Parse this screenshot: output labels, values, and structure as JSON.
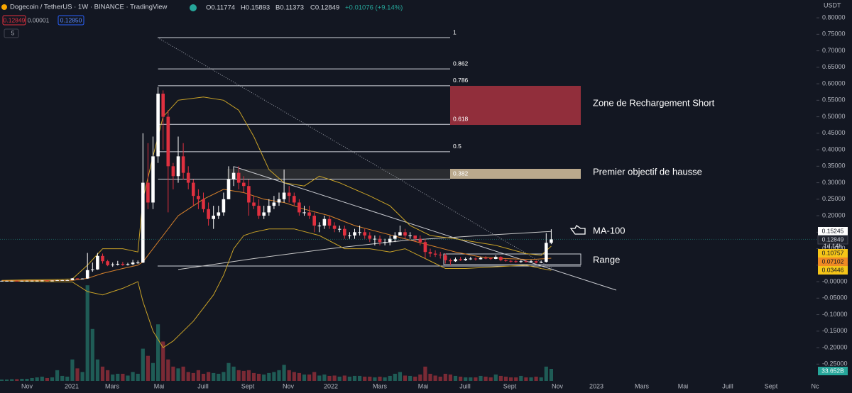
{
  "header": {
    "symbol": "Dogecoin / TetherUS · 1W · BINANCE · TradingView",
    "ohlc": [
      "O0.11774",
      "H0.15893",
      "B0.11373",
      "C0.12849"
    ],
    "change": "+0.01076 (+9.14%)",
    "bid": "0.12849",
    "spread": "0.00001",
    "ask": "0.12850",
    "indicator_count": "5"
  },
  "chart_data": {
    "type": "candlestick",
    "up_color": "#ffffff",
    "down_color": "#e0303f",
    "open": [
      0.0025,
      0.0026,
      0.0026,
      0.0027,
      0.0026,
      0.0027,
      0.0028,
      0.003,
      0.0031,
      0.0035,
      0.0032,
      0.0034,
      0.0045,
      0.0046,
      0.0047,
      0.01,
      0.0086,
      0.0095,
      0.035,
      0.037,
      0.078,
      0.062,
      0.05,
      0.052,
      0.054,
      0.051,
      0.053,
      0.058,
      0.058,
      0.3,
      0.24,
      0.38,
      0.57,
      0.5,
      0.35,
      0.32,
      0.38,
      0.33,
      0.3,
      0.26,
      0.25,
      0.22,
      0.19,
      0.2,
      0.21,
      0.25,
      0.31,
      0.33,
      0.3,
      0.29,
      0.24,
      0.23,
      0.2,
      0.21,
      0.23,
      0.24,
      0.25,
      0.27,
      0.26,
      0.24,
      0.21,
      0.21,
      0.2,
      0.17,
      0.17,
      0.19,
      0.17,
      0.16,
      0.16,
      0.14,
      0.14,
      0.15,
      0.15,
      0.14,
      0.13,
      0.13,
      0.12,
      0.12,
      0.13,
      0.14,
      0.15,
      0.14,
      0.14,
      0.13,
      0.12,
      0.09,
      0.085,
      0.082,
      0.08,
      0.065,
      0.062,
      0.068,
      0.065,
      0.069,
      0.07,
      0.068,
      0.072,
      0.071,
      0.069,
      0.075,
      0.065,
      0.063,
      0.062,
      0.06,
      0.062,
      0.061,
      0.062,
      0.058,
      0.06,
      0.11774
    ],
    "high": [
      0.0028,
      0.0028,
      0.0029,
      0.0028,
      0.0029,
      0.003,
      0.0032,
      0.0034,
      0.0038,
      0.0037,
      0.0036,
      0.0048,
      0.0049,
      0.0058,
      0.011,
      0.0103,
      0.01,
      0.087,
      0.058,
      0.087,
      0.085,
      0.066,
      0.058,
      0.063,
      0.06,
      0.057,
      0.066,
      0.064,
      0.45,
      0.42,
      0.44,
      0.59,
      0.58,
      0.52,
      0.36,
      0.44,
      0.42,
      0.35,
      0.31,
      0.28,
      0.27,
      0.24,
      0.23,
      0.23,
      0.27,
      0.35,
      0.35,
      0.35,
      0.32,
      0.31,
      0.26,
      0.25,
      0.23,
      0.25,
      0.26,
      0.27,
      0.34,
      0.29,
      0.27,
      0.25,
      0.23,
      0.23,
      0.21,
      0.18,
      0.2,
      0.2,
      0.18,
      0.17,
      0.17,
      0.15,
      0.16,
      0.17,
      0.16,
      0.15,
      0.14,
      0.14,
      0.13,
      0.14,
      0.15,
      0.17,
      0.16,
      0.15,
      0.14,
      0.14,
      0.13,
      0.1,
      0.095,
      0.09,
      0.085,
      0.07,
      0.073,
      0.075,
      0.073,
      0.075,
      0.073,
      0.076,
      0.077,
      0.074,
      0.08,
      0.077,
      0.068,
      0.066,
      0.065,
      0.066,
      0.065,
      0.066,
      0.064,
      0.064,
      0.147,
      0.15893
    ],
    "low": [
      0.0024,
      0.0025,
      0.0025,
      0.0025,
      0.0025,
      0.0026,
      0.0027,
      0.0029,
      0.003,
      0.003,
      0.0031,
      0.0033,
      0.0042,
      0.0044,
      0.0045,
      0.0075,
      0.008,
      0.0088,
      0.03,
      0.036,
      0.055,
      0.047,
      0.045,
      0.049,
      0.048,
      0.049,
      0.05,
      0.054,
      0.056,
      0.22,
      0.22,
      0.36,
      0.4,
      0.21,
      0.28,
      0.3,
      0.31,
      0.28,
      0.23,
      0.22,
      0.21,
      0.17,
      0.16,
      0.19,
      0.2,
      0.25,
      0.29,
      0.28,
      0.27,
      0.2,
      0.22,
      0.19,
      0.19,
      0.2,
      0.22,
      0.23,
      0.24,
      0.24,
      0.23,
      0.2,
      0.2,
      0.19,
      0.15,
      0.15,
      0.16,
      0.16,
      0.15,
      0.15,
      0.13,
      0.13,
      0.13,
      0.14,
      0.13,
      0.12,
      0.11,
      0.11,
      0.11,
      0.11,
      0.12,
      0.14,
      0.13,
      0.13,
      0.12,
      0.11,
      0.07,
      0.075,
      0.075,
      0.07,
      0.055,
      0.05,
      0.06,
      0.063,
      0.063,
      0.066,
      0.064,
      0.067,
      0.068,
      0.066,
      0.068,
      0.062,
      0.06,
      0.058,
      0.057,
      0.057,
      0.058,
      0.058,
      0.055,
      0.056,
      0.058,
      0.11373
    ],
    "close": [
      0.0026,
      0.0026,
      0.0027,
      0.0026,
      0.0027,
      0.0028,
      0.003,
      0.0031,
      0.0035,
      0.0032,
      0.0034,
      0.0045,
      0.0046,
      0.0047,
      0.01,
      0.0086,
      0.0095,
      0.035,
      0.037,
      0.078,
      0.062,
      0.05,
      0.052,
      0.054,
      0.051,
      0.053,
      0.058,
      0.058,
      0.3,
      0.24,
      0.38,
      0.57,
      0.5,
      0.35,
      0.32,
      0.38,
      0.33,
      0.3,
      0.26,
      0.25,
      0.22,
      0.19,
      0.2,
      0.21,
      0.25,
      0.31,
      0.33,
      0.3,
      0.29,
      0.24,
      0.23,
      0.2,
      0.21,
      0.23,
      0.24,
      0.25,
      0.27,
      0.26,
      0.24,
      0.21,
      0.21,
      0.2,
      0.17,
      0.17,
      0.19,
      0.17,
      0.16,
      0.16,
      0.14,
      0.14,
      0.15,
      0.15,
      0.14,
      0.13,
      0.13,
      0.12,
      0.12,
      0.13,
      0.14,
      0.15,
      0.14,
      0.14,
      0.13,
      0.12,
      0.09,
      0.085,
      0.082,
      0.08,
      0.065,
      0.062,
      0.068,
      0.065,
      0.069,
      0.07,
      0.068,
      0.072,
      0.071,
      0.069,
      0.075,
      0.065,
      0.063,
      0.062,
      0.06,
      0.062,
      0.061,
      0.062,
      0.058,
      0.06,
      0.11774,
      0.12849
    ],
    "volume": {
      "up_color": "#1f5c56",
      "down_color": "#7a2a35",
      "tag_color": "#26a69a",
      "last_label": "33.652B",
      "values": [
        4,
        4,
        5,
        5,
        6,
        6,
        8,
        10,
        12,
        8,
        10,
        30,
        14,
        12,
        60,
        35,
        25,
        267,
        145,
        60,
        40,
        30,
        18,
        20,
        20,
        15,
        25,
        20,
        90,
        70,
        50,
        158,
        110,
        60,
        40,
        35,
        40,
        25,
        22,
        30,
        20,
        25,
        22,
        20,
        25,
        50,
        40,
        30,
        28,
        30,
        22,
        20,
        18,
        22,
        25,
        30,
        45,
        30,
        25,
        22,
        18,
        18,
        25,
        15,
        18,
        14,
        15,
        12,
        15,
        12,
        14,
        14,
        12,
        12,
        10,
        12,
        10,
        14,
        20,
        25,
        15,
        14,
        12,
        18,
        40,
        20,
        15,
        12,
        20,
        18,
        14,
        12,
        10,
        10,
        10,
        14,
        12,
        10,
        18,
        14,
        12,
        10,
        10,
        14,
        10,
        10,
        12,
        10,
        40,
        33.652
      ]
    },
    "indicators": [
      {
        "color": "#c9c9c9",
        "x": [
          35,
          50,
          65,
          80,
          95,
          109
        ],
        "values": [
          0.037,
          0.07,
          0.1,
          0.125,
          0.14,
          0.15245
        ]
      },
      {
        "color": "#c9a227",
        "x": [
          0,
          14,
          17,
          20,
          24,
          27,
          28,
          30,
          32,
          35,
          40,
          44,
          47,
          50,
          53,
          56,
          60,
          63,
          67,
          73,
          77,
          81,
          85,
          90,
          98,
          104,
          107,
          109
        ],
        "values": [
          0.004,
          0.008,
          0.05,
          0.1,
          0.1,
          0.09,
          0.25,
          0.38,
          0.5,
          0.55,
          0.56,
          0.55,
          0.52,
          0.44,
          0.34,
          0.3,
          0.29,
          0.32,
          0.3,
          0.26,
          0.23,
          0.17,
          0.14,
          0.13,
          0.11,
          0.085,
          0.08,
          0.10757
        ]
      },
      {
        "color": "#c9a227",
        "x": [
          0,
          14,
          17,
          20,
          24,
          27,
          28,
          30,
          32,
          34,
          38,
          42,
          44,
          46,
          48,
          50,
          53,
          58,
          63,
          68,
          73,
          77,
          80,
          84,
          88,
          92,
          98,
          104,
          107,
          109
        ],
        "values": [
          0.002,
          -0.001,
          -0.03,
          -0.04,
          -0.02,
          0,
          -0.06,
          -0.15,
          -0.2,
          -0.18,
          -0.12,
          -0.04,
          0.02,
          0.1,
          0.14,
          0.15,
          0.16,
          0.16,
          0.14,
          0.1,
          0.1,
          0.09,
          0.1,
          0.07,
          0.04,
          0.04,
          0.045,
          0.05,
          0.04,
          0.03446
        ]
      },
      {
        "color": "#d9822b",
        "x": [
          0,
          14,
          17,
          20,
          24,
          27,
          28,
          30,
          32,
          35,
          40,
          44,
          48,
          52,
          56,
          60,
          65,
          70,
          75,
          80,
          85,
          90,
          95,
          100,
          105,
          109
        ],
        "values": [
          0.003,
          0.004,
          0.01,
          0.025,
          0.04,
          0.05,
          0.06,
          0.1,
          0.14,
          0.2,
          0.25,
          0.28,
          0.27,
          0.25,
          0.24,
          0.22,
          0.2,
          0.17,
          0.15,
          0.13,
          0.11,
          0.09,
          0.075,
          0.07,
          0.067,
          0.07102
        ]
      }
    ],
    "ylim": [
      -0.301,
      0.854
    ],
    "yticks": [
      {
        "value": 0.8,
        "label": "0.80000"
      },
      {
        "value": 0.75,
        "label": "0.75000"
      },
      {
        "value": 0.7,
        "label": "0.70000"
      },
      {
        "value": 0.65,
        "label": "0.65000"
      },
      {
        "value": 0.6,
        "label": "0.60000"
      },
      {
        "value": 0.55,
        "label": "0.55000"
      },
      {
        "value": 0.5,
        "label": "0.50000"
      },
      {
        "value": 0.45,
        "label": "0.45000"
      },
      {
        "value": 0.4,
        "label": "0.40000"
      },
      {
        "value": 0.35,
        "label": "0.35000"
      },
      {
        "value": 0.3,
        "label": "0.30000"
      },
      {
        "value": 0.25,
        "label": "0.25000"
      },
      {
        "value": 0.2,
        "label": "0.20000"
      },
      {
        "value": 0.15,
        "label": "0.15000"
      },
      {
        "value": 0.1,
        "label": "0.10000"
      },
      {
        "value": 0.05,
        "label": "0.05000"
      },
      {
        "value": 0,
        "label": "-0.00000"
      },
      {
        "value": -0.05,
        "label": "-0.05000"
      },
      {
        "value": -0.1,
        "label": "-0.10000"
      },
      {
        "value": -0.15,
        "label": "-0.15000"
      },
      {
        "value": -0.2,
        "label": "-0.20000"
      },
      {
        "value": -0.25,
        "label": "-0.25000"
      }
    ],
    "x_labels": [
      "Nov",
      "2021",
      "Mars",
      "Mai",
      "Juill",
      "Sept",
      "Nov",
      "2022",
      "Mars",
      "Mai",
      "Juill",
      "Sept",
      "Nov",
      "2023",
      "Mars",
      "Mai",
      "Juill",
      "Sept",
      "Nc"
    ],
    "fib_levels": [
      {
        "label": "1",
        "value": 0.74
      },
      {
        "label": "0.862",
        "value": 0.645
      },
      {
        "label": "0.786",
        "value": 0.594
      },
      {
        "label": "0.618",
        "value": 0.477
      },
      {
        "label": "0.5",
        "value": 0.394
      },
      {
        "label": "0.382",
        "value": 0.311
      }
    ],
    "annotations": [
      "Zone de Rechargement Short",
      "Premier objectif de hausse",
      "MA-100",
      "Range"
    ],
    "price_tags": [
      {
        "value": 0.15245,
        "color": "#ffffff"
      },
      {
        "value": 0.12849,
        "color": "#1e222d"
      },
      {
        "value": 0.10757,
        "color": "#f5c518"
      },
      {
        "value": 0.07102,
        "color": "#f08a24"
      },
      {
        "value": 0.03446,
        "color": "#f5c518"
      }
    ],
    "countdown": "1d 14h",
    "currency": "USDT"
  }
}
